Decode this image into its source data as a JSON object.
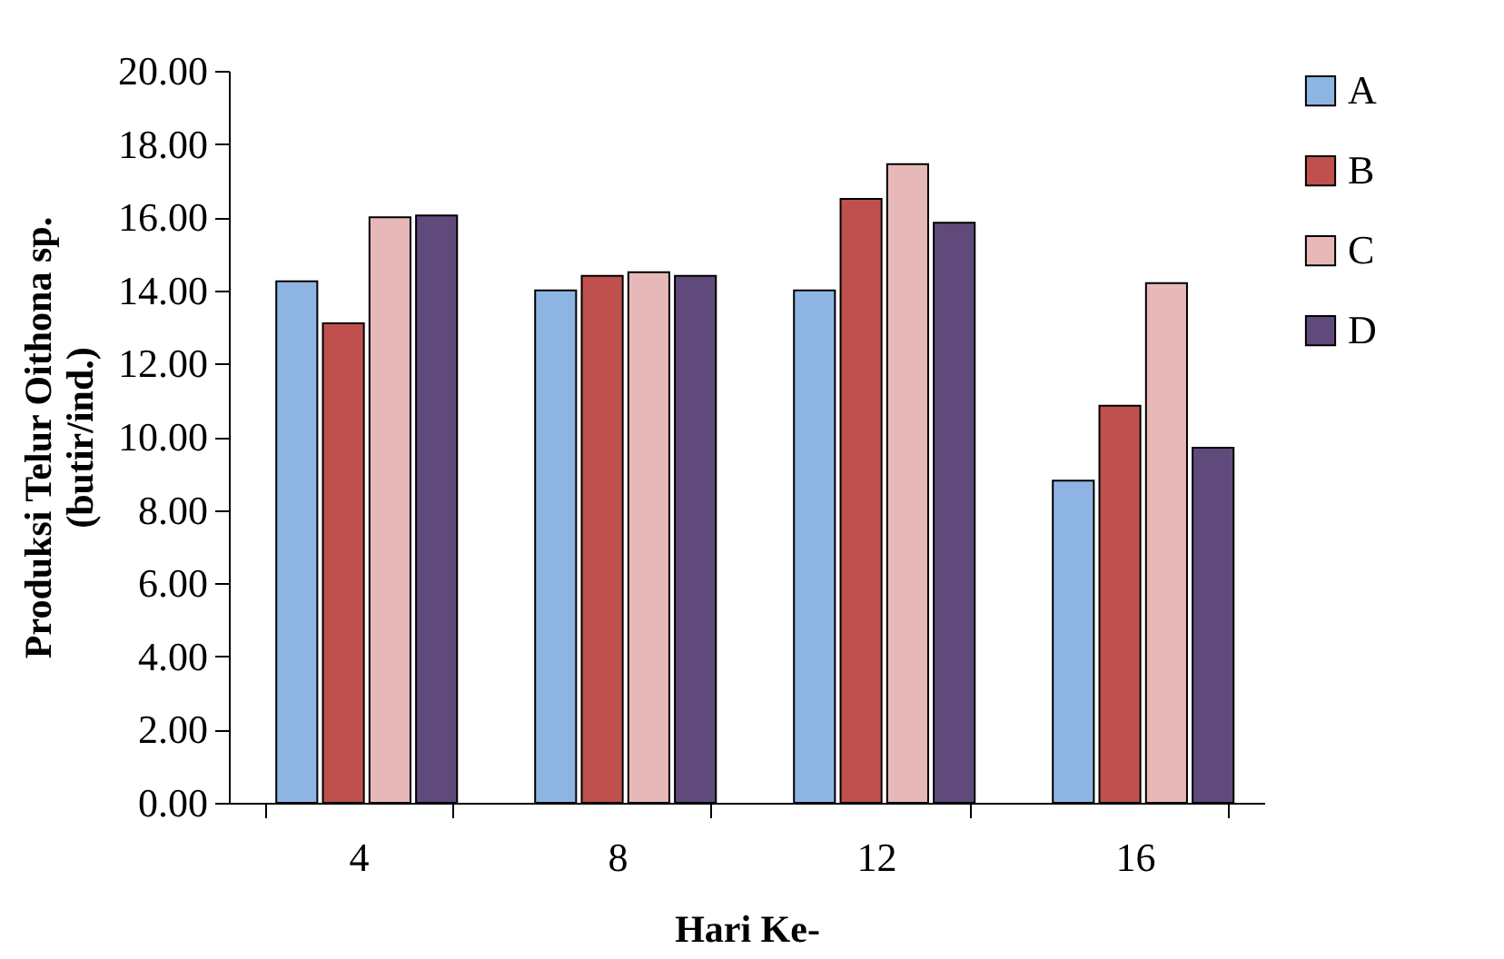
{
  "chart_data": {
    "type": "bar",
    "xlabel": "Hari Ke-",
    "ylabel": "Produksi Telur Oithona sp.\n(butir/ind.)",
    "categories": [
      "4",
      "8",
      "12",
      "16"
    ],
    "series": [
      {
        "name": "A",
        "color": "#8eb4e3",
        "values": [
          14.25,
          14.0,
          14.0,
          8.8
        ]
      },
      {
        "name": "B",
        "color": "#c0504d",
        "values": [
          13.1,
          14.4,
          16.5,
          10.85
        ]
      },
      {
        "name": "C",
        "color": "#e6b9b8",
        "values": [
          16.0,
          14.5,
          17.45,
          14.2
        ]
      },
      {
        "name": "D",
        "color": "#604a7b",
        "values": [
          16.05,
          14.4,
          15.85,
          9.7
        ]
      }
    ],
    "ylim": [
      0,
      20
    ],
    "yticks": [
      {
        "value": 0,
        "label": "0.00"
      },
      {
        "value": 2,
        "label": "2.00"
      },
      {
        "value": 4,
        "label": "4.00"
      },
      {
        "value": 6,
        "label": "6.00"
      },
      {
        "value": 8,
        "label": "8.00"
      },
      {
        "value": 10,
        "label": "10.00"
      },
      {
        "value": 12,
        "label": "12.00"
      },
      {
        "value": 14,
        "label": "14.00"
      },
      {
        "value": 16,
        "label": "16.00"
      },
      {
        "value": 18,
        "label": "18.00"
      },
      {
        "value": 20,
        "label": "20.00"
      }
    ],
    "grid": false,
    "legend": "right"
  }
}
